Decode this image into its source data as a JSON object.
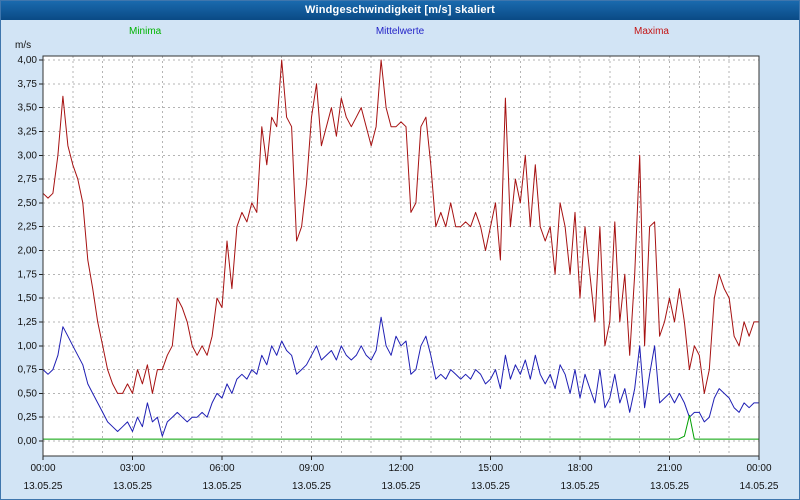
{
  "window": {
    "title": "Windgeschwindigkeit [m/s] skaliert"
  },
  "legend": {
    "items": [
      {
        "label": "Minima",
        "color": "#00b400"
      },
      {
        "label": "Mittelwerte",
        "color": "#2323c8"
      },
      {
        "label": "Maxima",
        "color": "#c41414"
      }
    ]
  },
  "axes": {
    "y_unit": "m/s",
    "y_tick_labels": [
      "4,00",
      "3,75",
      "3,50",
      "3,25",
      "3,00",
      "2,75",
      "2,50",
      "2,25",
      "2,00",
      "1,75",
      "1,50",
      "1,25",
      "1,00",
      "0,75",
      "0,50",
      "0,25",
      "0,00"
    ],
    "x_ticks": [
      {
        "hour": 0,
        "time": "00:00",
        "date": "13.05.25"
      },
      {
        "hour": 3,
        "time": "03:00",
        "date": "13.05.25"
      },
      {
        "hour": 6,
        "time": "06:00",
        "date": "13.05.25"
      },
      {
        "hour": 9,
        "time": "09:00",
        "date": "13.05.25"
      },
      {
        "hour": 12,
        "time": "12:00",
        "date": "13.05.25"
      },
      {
        "hour": 15,
        "time": "15:00",
        "date": "13.05.25"
      },
      {
        "hour": 18,
        "time": "18:00",
        "date": "13.05.25"
      },
      {
        "hour": 21,
        "time": "21:00",
        "date": "13.05.25"
      },
      {
        "hour": 24,
        "time": "00:00",
        "date": "14.05.25"
      }
    ]
  },
  "chart_data": {
    "type": "line",
    "title": "Windgeschwindigkeit [m/s] skaliert",
    "xlabel": "",
    "ylabel": "m/s",
    "ylim": [
      0,
      4.0
    ],
    "xlim_hours": [
      0,
      24
    ],
    "grid": true,
    "legend_position": "top",
    "x_start_hour": 0,
    "x_step_minutes": 10,
    "series": [
      {
        "name": "Maxima",
        "color": "#a61111",
        "values": [
          2.6,
          2.55,
          2.6,
          3.0,
          3.62,
          3.1,
          2.9,
          2.75,
          2.5,
          1.9,
          1.6,
          1.25,
          1.0,
          0.75,
          0.6,
          0.5,
          0.5,
          0.6,
          0.5,
          0.75,
          0.6,
          0.8,
          0.5,
          0.75,
          0.75,
          0.9,
          1.0,
          1.5,
          1.4,
          1.25,
          1.0,
          0.9,
          1.0,
          0.9,
          1.1,
          1.5,
          1.4,
          2.1,
          1.6,
          2.25,
          2.4,
          2.3,
          2.5,
          2.4,
          3.3,
          2.9,
          3.4,
          3.3,
          4.0,
          3.4,
          3.3,
          2.1,
          2.25,
          2.7,
          3.4,
          3.75,
          3.1,
          3.3,
          3.5,
          3.2,
          3.6,
          3.4,
          3.3,
          3.4,
          3.5,
          3.3,
          3.1,
          3.3,
          4.0,
          3.5,
          3.3,
          3.3,
          3.35,
          3.3,
          2.4,
          2.5,
          3.3,
          3.4,
          2.9,
          2.25,
          2.4,
          2.25,
          2.5,
          2.25,
          2.25,
          2.3,
          2.25,
          2.4,
          2.25,
          2.0,
          2.25,
          2.5,
          1.9,
          3.6,
          2.25,
          2.75,
          2.5,
          3.0,
          2.25,
          2.9,
          2.25,
          2.1,
          2.25,
          1.75,
          2.5,
          2.25,
          1.75,
          2.4,
          1.5,
          2.25,
          1.75,
          1.25,
          2.25,
          1.0,
          1.25,
          2.3,
          1.25,
          1.75,
          0.9,
          1.75,
          3.0,
          1.0,
          2.25,
          2.3,
          1.1,
          1.25,
          1.5,
          1.25,
          1.6,
          1.25,
          0.75,
          1.0,
          0.9,
          0.5,
          0.75,
          1.5,
          1.75,
          1.6,
          1.5,
          1.1,
          1.0,
          1.25,
          1.1,
          1.25,
          1.25
        ]
      },
      {
        "name": "Mittelwerte",
        "color": "#1f1fb4",
        "values": [
          0.75,
          0.7,
          0.75,
          0.9,
          1.2,
          1.1,
          1.0,
          0.9,
          0.8,
          0.6,
          0.5,
          0.4,
          0.3,
          0.2,
          0.15,
          0.1,
          0.15,
          0.2,
          0.1,
          0.25,
          0.15,
          0.4,
          0.2,
          0.25,
          0.05,
          0.2,
          0.25,
          0.3,
          0.25,
          0.2,
          0.25,
          0.25,
          0.3,
          0.25,
          0.4,
          0.5,
          0.45,
          0.6,
          0.5,
          0.65,
          0.7,
          0.65,
          0.75,
          0.7,
          0.9,
          0.8,
          1.0,
          0.9,
          1.05,
          0.95,
          0.9,
          0.7,
          0.75,
          0.8,
          0.9,
          1.0,
          0.85,
          0.9,
          0.95,
          0.85,
          1.0,
          0.9,
          0.85,
          0.9,
          1.0,
          0.9,
          0.85,
          0.95,
          1.3,
          1.0,
          0.9,
          1.1,
          1.0,
          1.05,
          0.7,
          0.75,
          1.0,
          1.1,
          0.9,
          0.65,
          0.7,
          0.65,
          0.75,
          0.7,
          0.65,
          0.7,
          0.65,
          0.75,
          0.7,
          0.6,
          0.65,
          0.75,
          0.55,
          0.9,
          0.65,
          0.8,
          0.7,
          0.85,
          0.65,
          0.9,
          0.7,
          0.6,
          0.7,
          0.55,
          0.8,
          0.7,
          0.5,
          0.75,
          0.45,
          0.7,
          0.55,
          0.4,
          0.75,
          0.35,
          0.45,
          0.7,
          0.4,
          0.55,
          0.3,
          0.55,
          1.0,
          0.35,
          0.7,
          1.0,
          0.4,
          0.45,
          0.5,
          0.4,
          0.5,
          0.4,
          0.25,
          0.3,
          0.3,
          0.2,
          0.25,
          0.45,
          0.55,
          0.5,
          0.45,
          0.35,
          0.3,
          0.4,
          0.35,
          0.4,
          0.4
        ]
      },
      {
        "name": "Minima",
        "color": "#00a000",
        "x_hours": [
          0,
          21.3,
          21.5,
          21.67,
          21.83,
          24
        ],
        "values": [
          0.02,
          0.02,
          0.05,
          0.27,
          0.02,
          0.02
        ]
      }
    ]
  }
}
